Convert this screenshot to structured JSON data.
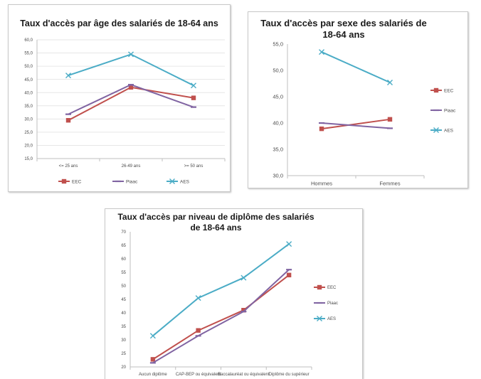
{
  "colors": {
    "EEC": "#c0504d",
    "Piaac": "#8064a2",
    "AES": "#4bacc6",
    "axis": "#bfbfbf",
    "grid": "#e6e6e6",
    "text": "#404040"
  },
  "chart_data": [
    {
      "type": "line",
      "title": "Taux d'accès par âge des salariés de 18-64 ans",
      "categories": [
        "<= 25 ans",
        "26-49 ans",
        ">= 50 ans"
      ],
      "ylim": [
        15,
        60
      ],
      "yticks": [
        "15,0",
        "20,0",
        "25,0",
        "30,0",
        "35,0",
        "40,0",
        "45,0",
        "50,0",
        "55,0",
        "60,0"
      ],
      "grid": true,
      "legend_position": "bottom",
      "series": [
        {
          "name": "EEC",
          "values": [
            29.5,
            42.0,
            38.0
          ]
        },
        {
          "name": "Piaac",
          "values": [
            31.8,
            43.0,
            34.5
          ]
        },
        {
          "name": "AES",
          "values": [
            46.5,
            54.5,
            42.7
          ]
        }
      ]
    },
    {
      "type": "line",
      "title": "Taux d'accès par sexe des salariés de 18-64 ans",
      "categories": [
        "Hommes",
        "Femmes"
      ],
      "ylim": [
        30,
        55
      ],
      "yticks": [
        "30,0",
        "35,0",
        "40,0",
        "45,0",
        "50,0",
        "55,0"
      ],
      "grid": false,
      "legend_position": "right",
      "series": [
        {
          "name": "EEC",
          "values": [
            38.9,
            40.7
          ]
        },
        {
          "name": "Piaac",
          "values": [
            40.0,
            39.0
          ]
        },
        {
          "name": "AES",
          "values": [
            53.5,
            47.7
          ]
        }
      ]
    },
    {
      "type": "line",
      "title": "Taux d'accès par niveau de diplôme des salariés de 18-64 ans",
      "categories": [
        "Aucun diplôme",
        "CAP-BEP ou équivalent",
        "Baccalauréat ou équivalent",
        "Diplôme du supérieur"
      ],
      "ylim": [
        20,
        70
      ],
      "yticks": [
        "20",
        "25",
        "30",
        "35",
        "40",
        "45",
        "50",
        "55",
        "60",
        "65",
        "70"
      ],
      "grid": false,
      "legend_position": "right",
      "series": [
        {
          "name": "EEC",
          "values": [
            22.8,
            33.5,
            41.0,
            54.0
          ]
        },
        {
          "name": "Piaac",
          "values": [
            21.5,
            31.5,
            40.5,
            56.0
          ]
        },
        {
          "name": "AES",
          "values": [
            31.5,
            45.5,
            53.0,
            65.5
          ]
        }
      ]
    }
  ]
}
